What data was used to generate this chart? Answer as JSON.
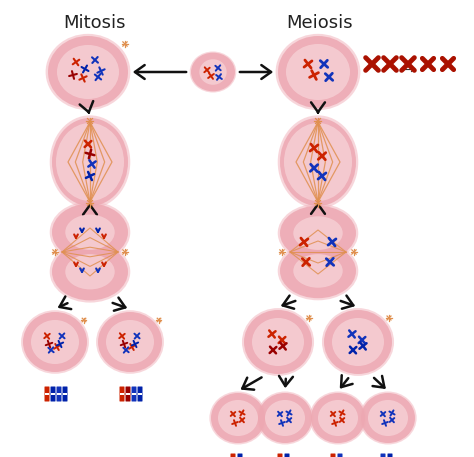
{
  "bg_color": "#ffffff",
  "title_mitosis": "Mitosis",
  "title_meiosis": "Meiosis",
  "cell_outer_color": "#f2b5be",
  "cell_outer_edge": "#e8a0aa",
  "cell_inner_color": "#eda8b2",
  "cell_nucleus_color": "#f5cdd2",
  "spindle_color": "#e09050",
  "chr_red": "#cc2200",
  "chr_blue": "#1133bb",
  "chr_darkred": "#990000",
  "chr_darkblue": "#0022aa",
  "arrow_color": "#111111",
  "star_color": "#e09050",
  "asterisk_color": "#333333",
  "sym_chr_red": "#aa1100",
  "figw": 4.74,
  "figh": 4.57,
  "dpi": 100
}
